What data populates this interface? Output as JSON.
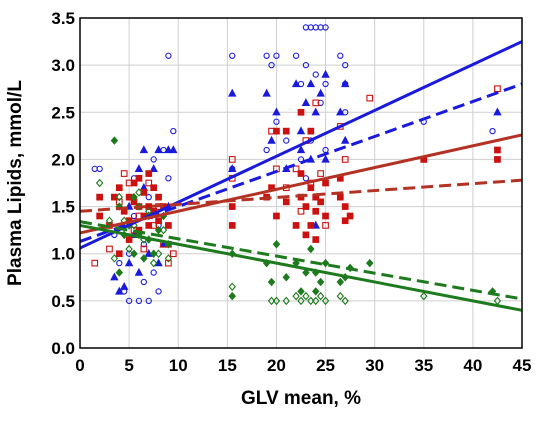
{
  "chart_data": {
    "type": "scatter",
    "xlabel": "GLV mean, %",
    "ylabel": "Plasma Lipids, mmol/L",
    "xlim": [
      0,
      45
    ],
    "ylim": [
      0,
      3.5
    ],
    "xticks": [
      "0",
      "5",
      "10",
      "15",
      "20",
      "25",
      "30",
      "35",
      "40",
      "45"
    ],
    "yticks": [
      "0.0",
      "0.5",
      "1.0",
      "1.5",
      "2.0",
      "2.5",
      "3.0",
      "3.5"
    ],
    "grid": true,
    "colors": {
      "blue": "#1a1adc",
      "red": "#cc1111",
      "brown": "#b33224",
      "green": "#1d7a1d"
    },
    "series": [
      {
        "color": "blue",
        "marker": "circle-open",
        "points": [
          [
            1.5,
            1.9
          ],
          [
            2,
            1.9
          ],
          [
            3.5,
            1.2
          ],
          [
            4,
            0.9
          ],
          [
            4.5,
            0.6
          ],
          [
            5,
            0.5
          ],
          [
            5,
            1.0
          ],
          [
            5.5,
            1.4
          ],
          [
            6,
            0.5
          ],
          [
            6,
            1.2
          ],
          [
            6.5,
            0.7
          ],
          [
            7,
            0.5
          ],
          [
            7,
            1.6
          ],
          [
            7.5,
            0.8
          ],
          [
            7.5,
            2.0
          ],
          [
            8,
            1.3
          ],
          [
            8,
            0.6
          ],
          [
            8.5,
            2.1
          ],
          [
            9,
            3.1
          ],
          [
            9,
            1.8
          ],
          [
            9.5,
            2.3
          ],
          [
            5.5,
            1.8
          ],
          [
            6.5,
            1.1
          ],
          [
            15.5,
            3.1
          ],
          [
            15.5,
            1.9
          ],
          [
            19,
            3.1
          ],
          [
            19.5,
            3.0
          ],
          [
            19,
            2.1
          ],
          [
            20,
            3.1
          ],
          [
            20,
            2.4
          ],
          [
            21,
            2.2
          ],
          [
            22,
            3.1
          ],
          [
            22.5,
            2.8
          ],
          [
            23,
            3.4
          ],
          [
            23.5,
            3.4
          ],
          [
            23,
            3.0
          ],
          [
            23.5,
            2.2
          ],
          [
            24,
            3.4
          ],
          [
            24,
            2.9
          ],
          [
            24.5,
            3.4
          ],
          [
            24.5,
            2.6
          ],
          [
            25,
            3.4
          ],
          [
            25,
            2.8
          ],
          [
            25,
            2.1
          ],
          [
            26.5,
            3.1
          ],
          [
            27,
            2.8
          ],
          [
            27,
            2.5
          ],
          [
            27,
            3.0
          ],
          [
            35,
            2.4
          ],
          [
            42,
            2.3
          ],
          [
            23,
            1.8
          ],
          [
            22.5,
            2.0
          ],
          [
            24,
            1.6
          ]
        ]
      },
      {
        "color": "blue",
        "marker": "triangle-filled",
        "points": [
          [
            3.5,
            0.75
          ],
          [
            4,
            0.6
          ],
          [
            4.5,
            0.65
          ],
          [
            5,
            0.9
          ],
          [
            5,
            1.5
          ],
          [
            5.5,
            1.2
          ],
          [
            6,
            1.9
          ],
          [
            6,
            0.8
          ],
          [
            6.5,
            1.7
          ],
          [
            7,
            1.0
          ],
          [
            7,
            1.4
          ],
          [
            7.5,
            1.9
          ],
          [
            8,
            2.1
          ],
          [
            8,
            0.9
          ],
          [
            8.5,
            1.1
          ],
          [
            9,
            1.5
          ],
          [
            9,
            2.1
          ],
          [
            9.5,
            2.1
          ],
          [
            6.5,
            2.1
          ],
          [
            15.5,
            2.7
          ],
          [
            15.5,
            1.9
          ],
          [
            19,
            2.7
          ],
          [
            19.5,
            2.2
          ],
          [
            20,
            2.5
          ],
          [
            21,
            1.9
          ],
          [
            22,
            2.8
          ],
          [
            22.5,
            2.3
          ],
          [
            23,
            2.6
          ],
          [
            23.5,
            2.8
          ],
          [
            23.5,
            2.0
          ],
          [
            24,
            2.5
          ],
          [
            24,
            1.3
          ],
          [
            24.5,
            2.7
          ],
          [
            25,
            2.0
          ],
          [
            25,
            2.9
          ],
          [
            26.5,
            2.5
          ],
          [
            27,
            2.8
          ],
          [
            27,
            2.2
          ],
          [
            42.5,
            2.5
          ],
          [
            22.5,
            2.1
          ]
        ]
      },
      {
        "color": "red",
        "marker": "square-filled",
        "points": [
          [
            2,
            1.6
          ],
          [
            2,
            1.4
          ],
          [
            3,
            1.3
          ],
          [
            3.5,
            1.6
          ],
          [
            4,
            1.7
          ],
          [
            4.5,
            1.45
          ],
          [
            5,
            1.6
          ],
          [
            5,
            1.35
          ],
          [
            5.5,
            1.75
          ],
          [
            5.5,
            1.55
          ],
          [
            6,
            1.5
          ],
          [
            6,
            1.8
          ],
          [
            6,
            1.25
          ],
          [
            6.5,
            1.65
          ],
          [
            6.5,
            1.4
          ],
          [
            7,
            1.85
          ],
          [
            7,
            1.5
          ],
          [
            7,
            1.3
          ],
          [
            7.5,
            1.7
          ],
          [
            7.5,
            1.45
          ],
          [
            8,
            1.6
          ],
          [
            8,
            1.35
          ],
          [
            8.5,
            1.5
          ],
          [
            9,
            1.3
          ],
          [
            9,
            1.1
          ],
          [
            5,
            1.15
          ],
          [
            4,
            1.0
          ],
          [
            15.5,
            1.5
          ],
          [
            15.5,
            1.3
          ],
          [
            19,
            1.6
          ],
          [
            19.5,
            1.7
          ],
          [
            20,
            1.4
          ],
          [
            21,
            1.55
          ],
          [
            22,
            1.3
          ],
          [
            22.5,
            1.6
          ],
          [
            22.5,
            1.85
          ],
          [
            23,
            1.5
          ],
          [
            23,
            1.2
          ],
          [
            23.5,
            1.7
          ],
          [
            23.5,
            1.3
          ],
          [
            24,
            1.6
          ],
          [
            24,
            1.45
          ],
          [
            24,
            1.15
          ],
          [
            24.5,
            1.55
          ],
          [
            25,
            1.75
          ],
          [
            25,
            1.4
          ],
          [
            26.5,
            1.6
          ],
          [
            27,
            1.35
          ],
          [
            27,
            1.5
          ],
          [
            27.5,
            1.4
          ],
          [
            35,
            2.0
          ],
          [
            42.5,
            2.0
          ],
          [
            42.5,
            2.1
          ],
          [
            21,
            2.3
          ],
          [
            20,
            2.3
          ],
          [
            22.5,
            2.5
          ],
          [
            23.5,
            2.3
          ],
          [
            26.5,
            1.8
          ]
        ]
      },
      {
        "color": "red",
        "marker": "square-open",
        "points": [
          [
            1.5,
            0.9
          ],
          [
            3,
            1.05
          ],
          [
            4,
            1.55
          ],
          [
            4.5,
            1.85
          ],
          [
            5,
            1.75
          ],
          [
            5.5,
            1.25
          ],
          [
            6,
            1.4
          ],
          [
            6.5,
            1.05
          ],
          [
            7,
            1.75
          ],
          [
            7.5,
            1.3
          ],
          [
            8,
            1.5
          ],
          [
            8.5,
            1.1
          ],
          [
            9,
            0.9
          ],
          [
            9.5,
            1.0
          ],
          [
            15.5,
            2.0
          ],
          [
            15.5,
            1.8
          ],
          [
            19.5,
            2.3
          ],
          [
            20,
            1.9
          ],
          [
            21,
            1.7
          ],
          [
            22,
            1.9
          ],
          [
            22.5,
            1.45
          ],
          [
            23,
            2.2
          ],
          [
            23.5,
            1.75
          ],
          [
            24,
            2.6
          ],
          [
            24.5,
            1.85
          ],
          [
            25,
            1.3
          ],
          [
            26.5,
            2.35
          ],
          [
            27,
            2.0
          ],
          [
            29.5,
            2.65
          ],
          [
            42.5,
            2.75
          ]
        ]
      },
      {
        "color": "green",
        "marker": "diamond-filled",
        "points": [
          [
            3.5,
            2.2
          ],
          [
            4,
            1.5
          ],
          [
            4,
            0.8
          ],
          [
            4.5,
            1.2
          ],
          [
            5,
            1.3
          ],
          [
            5.5,
            1.0
          ],
          [
            5.5,
            1.6
          ],
          [
            6,
            1.2
          ],
          [
            6,
            1.5
          ],
          [
            6.5,
            0.95
          ],
          [
            7,
            1.15
          ],
          [
            7,
            1.4
          ],
          [
            7.5,
            1.0
          ],
          [
            8,
            1.25
          ],
          [
            8.5,
            1.4
          ],
          [
            9,
            1.1
          ],
          [
            15.5,
            1.0
          ],
          [
            15.5,
            0.55
          ],
          [
            19,
            0.9
          ],
          [
            19.5,
            0.7
          ],
          [
            20,
            1.1
          ],
          [
            21,
            0.75
          ],
          [
            22,
            0.9
          ],
          [
            22.5,
            0.6
          ],
          [
            23,
            0.8
          ],
          [
            23.5,
            1.05
          ],
          [
            24,
            0.8
          ],
          [
            24,
            0.6
          ],
          [
            24.5,
            0.7
          ],
          [
            25,
            0.9
          ],
          [
            26.5,
            0.7
          ],
          [
            27,
            0.75
          ],
          [
            27.5,
            0.85
          ],
          [
            29.5,
            0.9
          ],
          [
            42,
            0.6
          ]
        ]
      },
      {
        "color": "green",
        "marker": "diamond-open",
        "points": [
          [
            2,
            1.75
          ],
          [
            3,
            1.35
          ],
          [
            3.5,
            0.95
          ],
          [
            4,
            1.6
          ],
          [
            4.5,
            1.35
          ],
          [
            5,
            1.05
          ],
          [
            5.5,
            1.3
          ],
          [
            6,
            1.65
          ],
          [
            6.5,
            1.15
          ],
          [
            7,
            1.45
          ],
          [
            7.5,
            0.9
          ],
          [
            8,
            1.0
          ],
          [
            8.5,
            1.25
          ],
          [
            9,
            0.95
          ],
          [
            15.5,
            0.65
          ],
          [
            19.5,
            0.5
          ],
          [
            20,
            0.5
          ],
          [
            21,
            0.5
          ],
          [
            22,
            0.55
          ],
          [
            22.5,
            0.5
          ],
          [
            23,
            0.55
          ],
          [
            23.5,
            0.5
          ],
          [
            24,
            0.5
          ],
          [
            24.5,
            0.55
          ],
          [
            25,
            0.5
          ],
          [
            26.5,
            0.55
          ],
          [
            27,
            0.5
          ],
          [
            35,
            0.55
          ],
          [
            42.5,
            0.5
          ]
        ]
      }
    ],
    "lines": [
      {
        "color": "blue",
        "style": "solid",
        "from": [
          0,
          1.06
        ],
        "to": [
          45,
          3.25
        ]
      },
      {
        "color": "blue",
        "style": "dashed",
        "from": [
          0,
          1.13
        ],
        "to": [
          45,
          2.8
        ]
      },
      {
        "color": "brown",
        "style": "solid",
        "from": [
          0,
          1.22
        ],
        "to": [
          45,
          2.26
        ]
      },
      {
        "color": "brown",
        "style": "dashed",
        "from": [
          0,
          1.45
        ],
        "to": [
          45,
          1.78
        ]
      },
      {
        "color": "green",
        "style": "solid",
        "from": [
          0,
          1.3
        ],
        "to": [
          45,
          0.4
        ]
      },
      {
        "color": "green",
        "style": "dashed",
        "from": [
          0,
          1.34
        ],
        "to": [
          45,
          0.52
        ]
      }
    ]
  }
}
